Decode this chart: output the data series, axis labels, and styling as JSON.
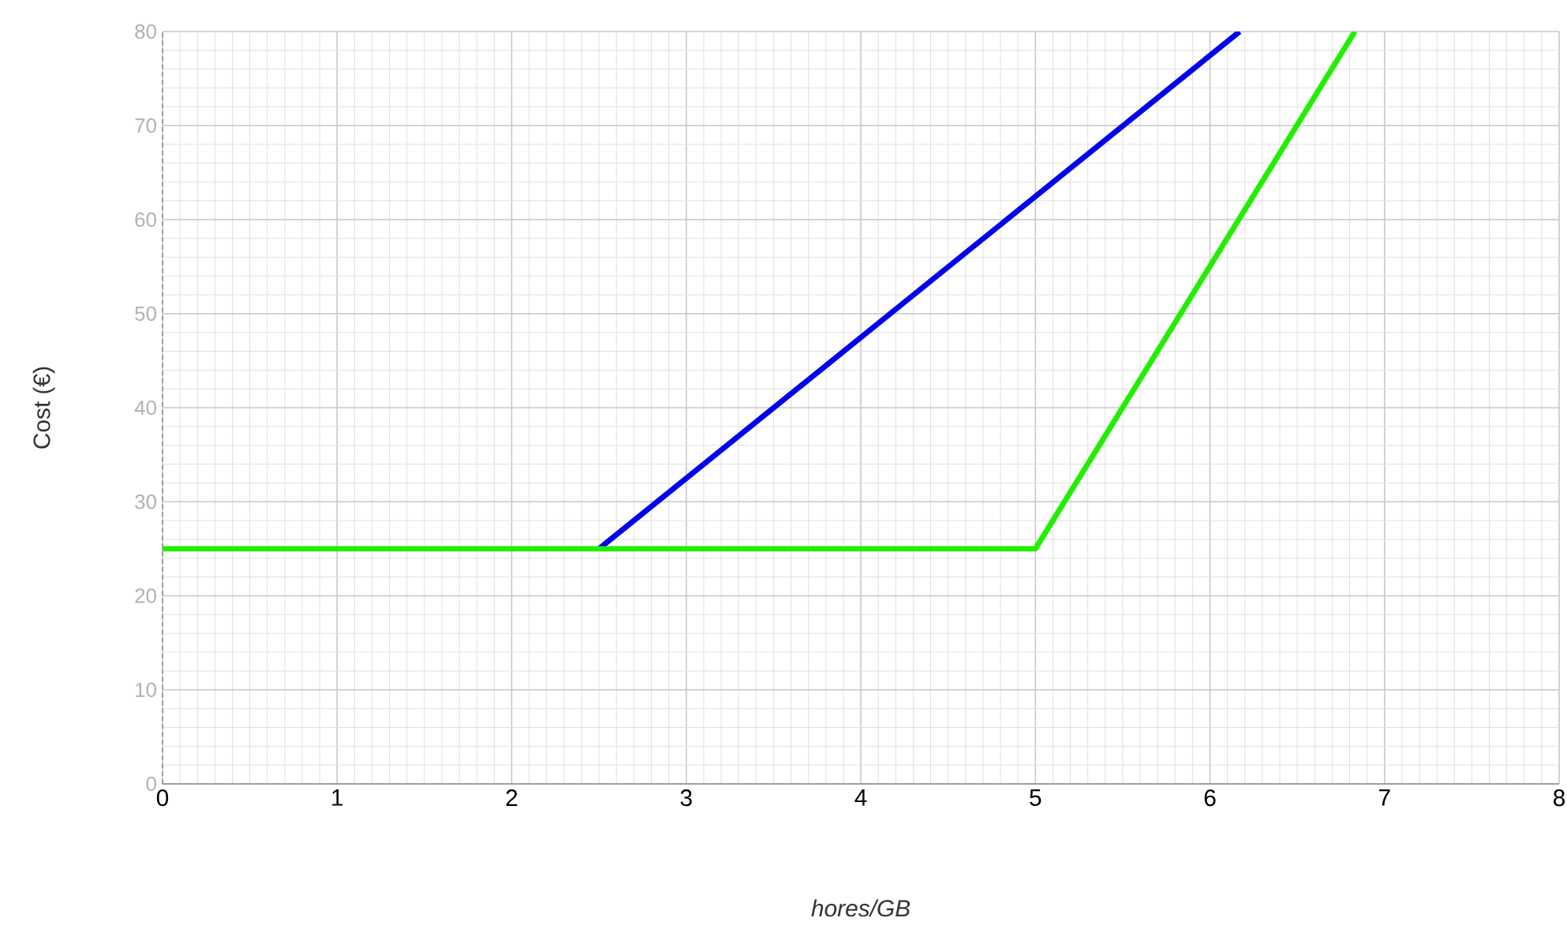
{
  "chart_data": {
    "type": "line",
    "xlabel": "hores/GB",
    "ylabel": "Cost (€)",
    "xlim": [
      0,
      8
    ],
    "ylim": [
      0,
      80
    ],
    "xticks": [
      0,
      1,
      2,
      3,
      4,
      5,
      6,
      7,
      8
    ],
    "yticks": [
      0,
      10,
      20,
      30,
      40,
      50,
      60,
      70,
      80
    ],
    "grid": true,
    "series": [
      {
        "color": "#0000ee",
        "x": [
          2.5,
          6.17
        ],
        "values": [
          25,
          80
        ]
      },
      {
        "color": "#22ee00",
        "x": [
          0,
          5,
          6.83
        ],
        "values": [
          25,
          25,
          80
        ]
      }
    ]
  }
}
